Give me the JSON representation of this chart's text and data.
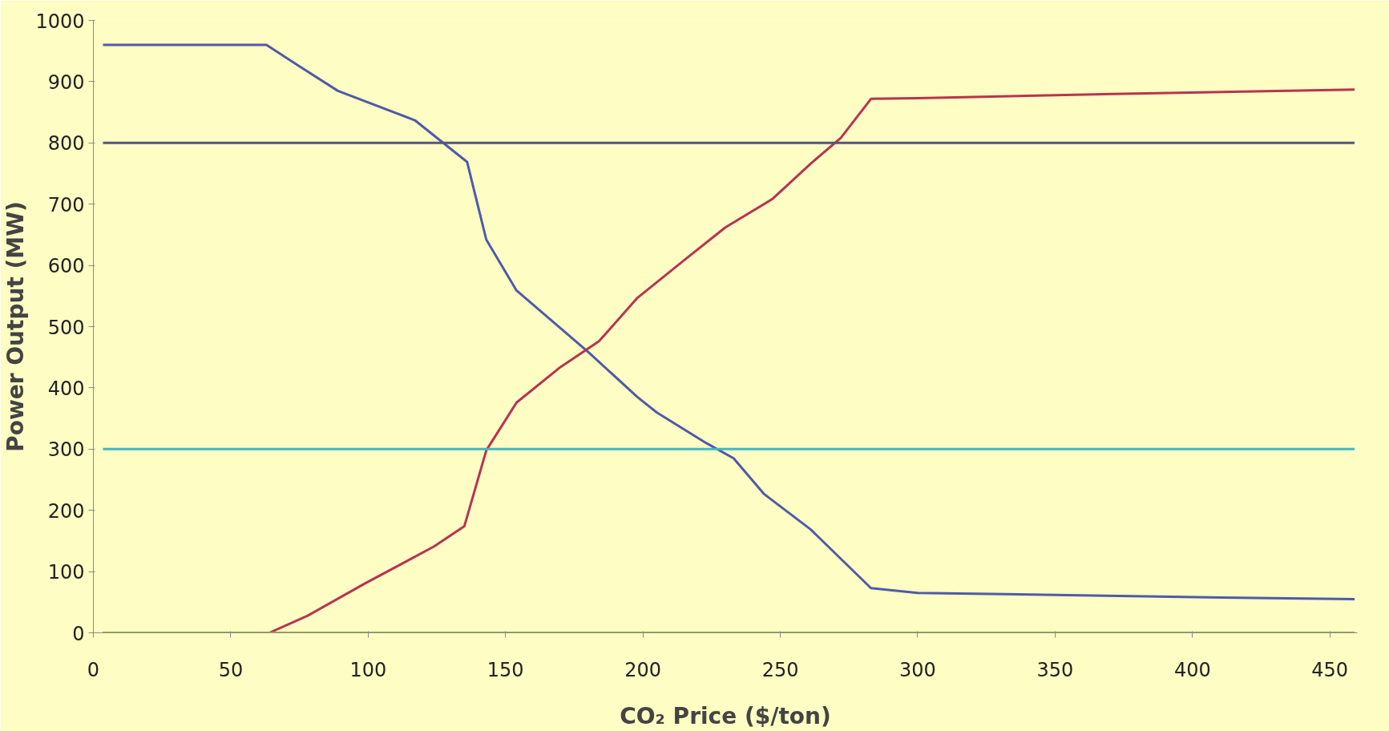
{
  "chart_data": {
    "type": "line",
    "xlabel": "CO₂ Price ($/ton)",
    "ylabel": "Power Output (MW)",
    "xlim": [
      0,
      460
    ],
    "ylim": [
      0,
      1000
    ],
    "xticks": [
      0,
      50,
      100,
      150,
      200,
      250,
      300,
      350,
      400,
      450
    ],
    "yticks": [
      0,
      100,
      200,
      300,
      400,
      500,
      600,
      700,
      800,
      900,
      1000
    ],
    "grid": false,
    "marker": "none",
    "line_style": "solid",
    "series": [
      {
        "color": "#4f5aa8",
        "x": [
          3.5,
          63,
          75,
          89,
          117,
          136,
          143,
          154,
          180,
          198,
          205,
          223,
          233,
          244,
          261,
          283,
          300,
          350,
          406,
          459
        ],
        "values": [
          960,
          960,
          925,
          885,
          837,
          769,
          642,
          559,
          459,
          385,
          360,
          310,
          285,
          227,
          169,
          73,
          65,
          62,
          58,
          55
        ]
      },
      {
        "color": "#b8344f",
        "x": [
          3.5,
          64,
          78,
          99,
          124,
          135,
          143,
          154,
          170,
          184,
          198,
          216,
          230,
          247,
          261,
          272,
          283,
          300,
          371,
          459
        ],
        "values": [
          0,
          0,
          28,
          81,
          141,
          174,
          298,
          376,
          434,
          476,
          547,
          612,
          662,
          708,
          766,
          808,
          872,
          873,
          880,
          887
        ]
      },
      {
        "color": "#55557a",
        "x": [
          3.5,
          459
        ],
        "values": [
          800,
          800
        ]
      },
      {
        "color": "#3cb8c8",
        "x": [
          3.5,
          459
        ],
        "values": [
          300,
          300
        ]
      },
      {
        "color": "#9aae3c",
        "x": [
          3.5,
          459
        ],
        "values": [
          0,
          0
        ]
      }
    ]
  }
}
